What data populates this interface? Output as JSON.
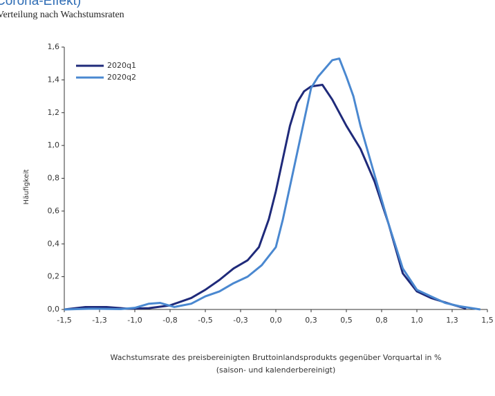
{
  "chart_data": {
    "type": "line",
    "title": "Corona-Effekt)",
    "subtitle": "Verteilung nach Wachstumsraten",
    "y_label": "Häufigkeit",
    "x_label": [
      "Wachstumsrate des preisbereinigten Bruttoinlandsprodukts gegenüber Vorquartal in %",
      "(saison- und kalenderbereinigt)"
    ],
    "xlim": [
      -1.5,
      1.5
    ],
    "xticks": [
      {
        "value": -1.5,
        "label": "-1,5"
      },
      {
        "value": -1.25,
        "label": "-1,3"
      },
      {
        "value": -1.0,
        "label": "-1,0"
      },
      {
        "value": -0.75,
        "label": "-0,8"
      },
      {
        "value": -0.5,
        "label": "-0,5"
      },
      {
        "value": -0.25,
        "label": "-0,3"
      },
      {
        "value": 0,
        "label": "0,0"
      },
      {
        "value": 0.25,
        "label": "0,3"
      },
      {
        "value": 0.5,
        "label": "0,5"
      },
      {
        "value": 0.75,
        "label": "0,8"
      },
      {
        "value": 1.0,
        "label": "1,0"
      },
      {
        "value": 1.25,
        "label": "1,3"
      },
      {
        "value": 1.5,
        "label": "1,5"
      }
    ],
    "ylim": [
      0,
      1.6
    ],
    "yticks": [
      {
        "value": 0,
        "label": "0,0"
      },
      {
        "value": 0.2,
        "label": "0,2"
      },
      {
        "value": 0.4,
        "label": "0,4"
      },
      {
        "value": 0.6,
        "label": "0,6"
      },
      {
        "value": 0.8,
        "label": "0,8"
      },
      {
        "value": 1.0,
        "label": "1,0"
      },
      {
        "value": 1.2,
        "label": "1,2"
      },
      {
        "value": 1.4,
        "label": "1,4"
      },
      {
        "value": 1.6,
        "label": "1,6"
      }
    ],
    "legend": "top-left",
    "series": [
      {
        "name": "2020q1",
        "color": "#1f2a7a",
        "x": [
          -1.5,
          -1.35,
          -1.2,
          -1.05,
          -0.9,
          -0.75,
          -0.6,
          -0.5,
          -0.4,
          -0.3,
          -0.2,
          -0.12,
          -0.05,
          0,
          0.05,
          0.1,
          0.15,
          0.2,
          0.25,
          0.33,
          0.4,
          0.5,
          0.6,
          0.7,
          0.8,
          0.9,
          1.0,
          1.1,
          1.25,
          1.35
        ],
        "values": [
          0,
          0.015,
          0.015,
          0.005,
          0.008,
          0.025,
          0.07,
          0.12,
          0.18,
          0.25,
          0.3,
          0.38,
          0.55,
          0.72,
          0.92,
          1.12,
          1.26,
          1.33,
          1.36,
          1.37,
          1.28,
          1.12,
          0.98,
          0.78,
          0.52,
          0.22,
          0.11,
          0.07,
          0.03,
          0.005
        ]
      },
      {
        "name": "2020q2",
        "color": "#4a88d0",
        "x": [
          -1.5,
          -1.3,
          -1.1,
          -1.0,
          -0.9,
          -0.82,
          -0.72,
          -0.6,
          -0.5,
          -0.4,
          -0.3,
          -0.2,
          -0.1,
          0,
          0.05,
          0.1,
          0.15,
          0.2,
          0.25,
          0.3,
          0.4,
          0.45,
          0.5,
          0.55,
          0.6,
          0.7,
          0.8,
          0.9,
          1.0,
          1.1,
          1.2,
          1.3,
          1.45
        ],
        "values": [
          0,
          0.005,
          0.002,
          0.01,
          0.035,
          0.04,
          0.015,
          0.035,
          0.08,
          0.11,
          0.16,
          0.2,
          0.27,
          0.38,
          0.55,
          0.75,
          0.95,
          1.15,
          1.35,
          1.42,
          1.52,
          1.53,
          1.42,
          1.3,
          1.12,
          0.82,
          0.52,
          0.25,
          0.12,
          0.08,
          0.04,
          0.02,
          0
        ]
      }
    ]
  }
}
